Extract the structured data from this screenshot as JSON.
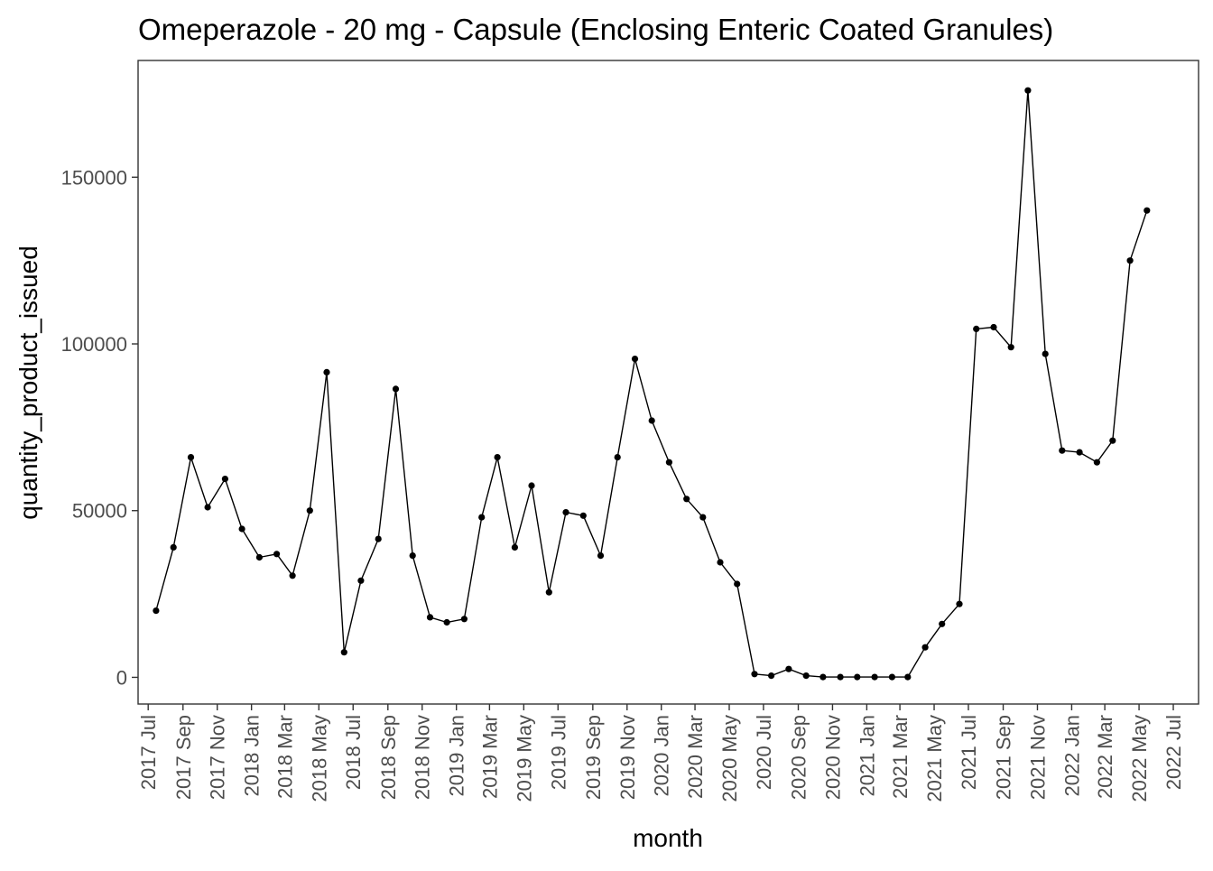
{
  "chart_data": {
    "type": "line",
    "title": "Omeperazole - 20 mg - Capsule (Enclosing Enteric Coated Granules)",
    "xlabel": "month",
    "ylabel": "quantity_product_issued",
    "ylim": [
      -8000,
      185000
    ],
    "yticks": [
      0,
      50000,
      100000,
      150000
    ],
    "ytick_labels": [
      "0",
      "50000",
      "100000",
      "150000"
    ],
    "xlim": [
      "2017-06-13",
      "2022-08-15"
    ],
    "xticks": [
      "2017-07-01",
      "2017-09-01",
      "2017-11-01",
      "2018-01-01",
      "2018-03-01",
      "2018-05-01",
      "2018-07-01",
      "2018-09-01",
      "2018-11-01",
      "2019-01-01",
      "2019-03-01",
      "2019-05-01",
      "2019-07-01",
      "2019-09-01",
      "2019-11-01",
      "2020-01-01",
      "2020-03-01",
      "2020-05-01",
      "2020-07-01",
      "2020-09-01",
      "2020-11-01",
      "2021-01-01",
      "2021-03-01",
      "2021-05-01",
      "2021-07-01",
      "2021-09-01",
      "2021-11-01",
      "2022-01-01",
      "2022-03-01",
      "2022-05-01",
      "2022-07-01"
    ],
    "xtick_labels": [
      "2017 Jul",
      "2017 Sep",
      "2017 Nov",
      "2018 Jan",
      "2018 Mar",
      "2018 May",
      "2018 Jul",
      "2018 Sep",
      "2018 Nov",
      "2019 Jan",
      "2019 Mar",
      "2019 May",
      "2019 Jul",
      "2019 Sep",
      "2019 Nov",
      "2020 Jan",
      "2020 Mar",
      "2020 May",
      "2020 Jul",
      "2020 Sep",
      "2020 Nov",
      "2021 Jan",
      "2021 Mar",
      "2021 May",
      "2021 Jul",
      "2021 Sep",
      "2021 Nov",
      "2022 Jan",
      "2022 Mar",
      "2022 May",
      "2022 Jul"
    ],
    "grid": false,
    "series": [
      {
        "x": [
          "2017-07-15",
          "2017-08-15",
          "2017-09-15",
          "2017-10-15",
          "2017-11-15",
          "2017-12-15",
          "2018-01-15",
          "2018-02-15",
          "2018-03-15",
          "2018-04-15",
          "2018-05-15",
          "2018-06-15",
          "2018-07-15",
          "2018-08-15",
          "2018-09-15",
          "2018-10-15",
          "2018-11-15",
          "2018-12-15",
          "2019-01-15",
          "2019-02-15",
          "2019-03-15",
          "2019-04-15",
          "2019-05-15",
          "2019-06-15",
          "2019-07-15",
          "2019-08-15",
          "2019-09-15",
          "2019-10-15",
          "2019-11-15",
          "2019-12-15",
          "2020-01-15",
          "2020-02-15",
          "2020-03-15",
          "2020-04-15",
          "2020-05-15",
          "2020-06-15",
          "2020-07-15",
          "2020-08-15",
          "2020-09-15",
          "2020-10-15",
          "2020-11-15",
          "2020-12-15",
          "2021-01-15",
          "2021-02-15",
          "2021-03-15",
          "2021-04-15",
          "2021-05-15",
          "2021-06-15",
          "2021-07-15",
          "2021-08-15",
          "2021-09-15",
          "2021-10-15",
          "2021-11-15",
          "2021-12-15",
          "2022-01-15",
          "2022-02-15",
          "2022-03-15",
          "2022-04-15",
          "2022-05-15",
          "2022-06-15"
        ],
        "values": [
          20000,
          39000,
          66000,
          51000,
          59500,
          44500,
          36000,
          37000,
          30500,
          50000,
          91500,
          7500,
          29000,
          41500,
          86500,
          36500,
          18000,
          16500,
          17500,
          48000,
          66000,
          39000,
          57500,
          25500,
          49500,
          48500,
          36500,
          66000,
          95500,
          77000,
          64500,
          53500,
          48000,
          34500,
          28000,
          1000,
          500,
          2500,
          500,
          100,
          100,
          100,
          100,
          100,
          100,
          9000,
          16000,
          22000,
          104500,
          105000,
          99000,
          176000,
          97000,
          68000,
          67500,
          64500,
          71000,
          125000,
          140000,
          null
        ],
        "color": "#000000"
      }
    ]
  }
}
